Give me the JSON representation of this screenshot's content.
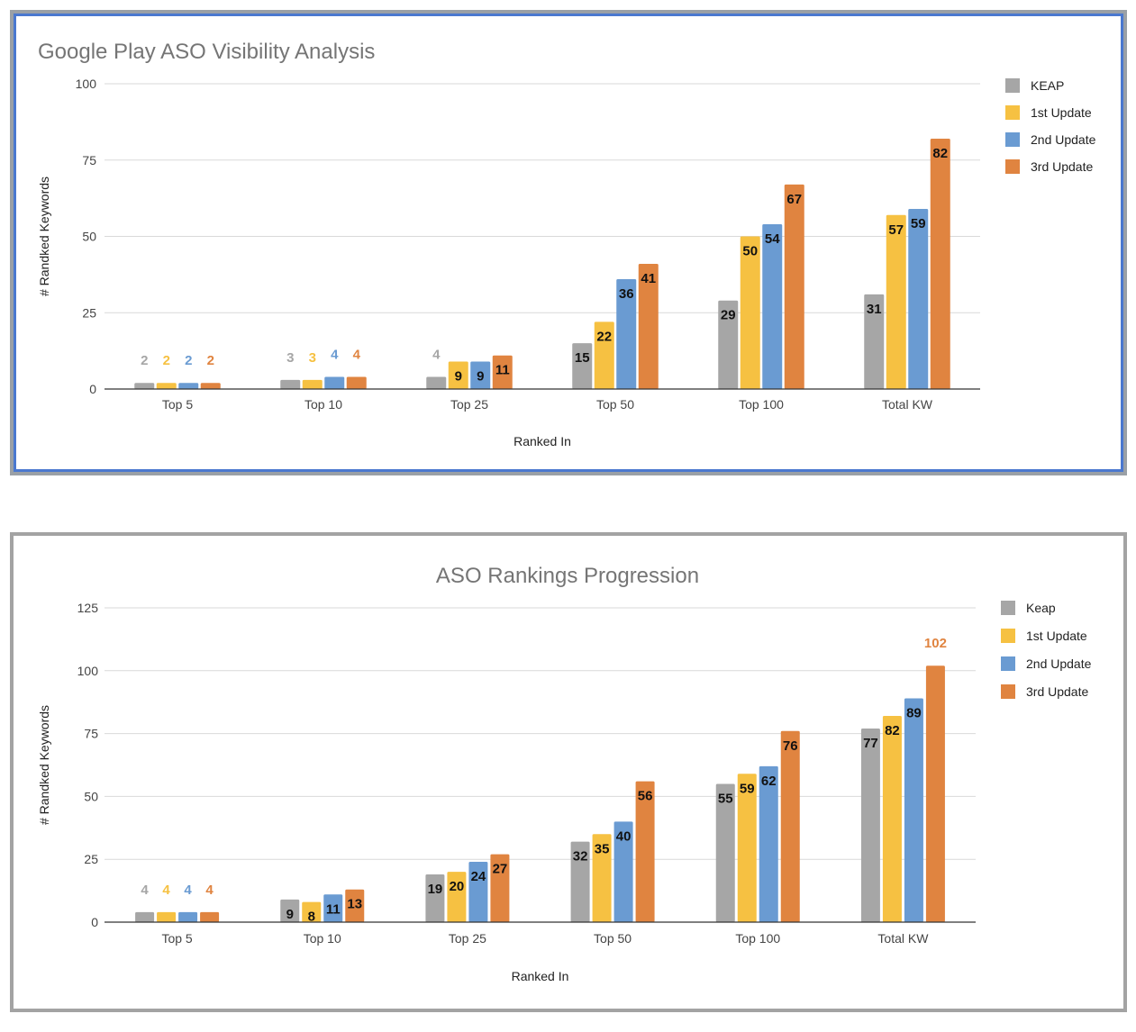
{
  "colors": {
    "series": [
      "#a6a6a6",
      "#f6c142",
      "#6a9bd2",
      "#e08440"
    ],
    "grid": "#d9d9d9",
    "axis": "#333333",
    "label_dark": "#111111"
  },
  "chart_data": [
    {
      "type": "bar",
      "title": "Google Play ASO Visibility Analysis",
      "xlabel": "Ranked In",
      "ylabel": "# Randked Keywords",
      "categories": [
        "Top 5",
        "Top 10",
        "Top 25",
        "Top 50",
        "Top 100",
        "Total KW"
      ],
      "series": [
        {
          "name": "KEAP",
          "values": [
            2,
            3,
            4,
            15,
            29,
            31
          ]
        },
        {
          "name": "1st Update",
          "values": [
            2,
            3,
            9,
            22,
            50,
            57
          ]
        },
        {
          "name": "2nd Update",
          "values": [
            2,
            4,
            9,
            36,
            54,
            59
          ]
        },
        {
          "name": "3rd Update",
          "values": [
            2,
            4,
            11,
            41,
            67,
            82
          ]
        }
      ],
      "ylim": [
        0,
        100
      ],
      "yticks": [
        0,
        25,
        50,
        75,
        100
      ],
      "grid": true,
      "legend": "right"
    },
    {
      "type": "bar",
      "title": "ASO Rankings Progression",
      "xlabel": "Ranked In",
      "ylabel": "# Randked Keywords",
      "categories": [
        "Top 5",
        "Top 10",
        "Top 25",
        "Top 50",
        "Top 100",
        "Total KW"
      ],
      "series": [
        {
          "name": "Keap",
          "values": [
            4,
            9,
            19,
            32,
            55,
            77
          ]
        },
        {
          "name": "1st Update",
          "values": [
            4,
            8,
            20,
            35,
            59,
            82
          ]
        },
        {
          "name": "2nd Update",
          "values": [
            4,
            11,
            24,
            40,
            62,
            89
          ]
        },
        {
          "name": "3rd Update",
          "values": [
            4,
            13,
            27,
            56,
            76,
            102
          ]
        }
      ],
      "ylim": [
        0,
        125
      ],
      "yticks": [
        0,
        25,
        50,
        75,
        100,
        125
      ],
      "grid": true,
      "legend": "right"
    }
  ]
}
